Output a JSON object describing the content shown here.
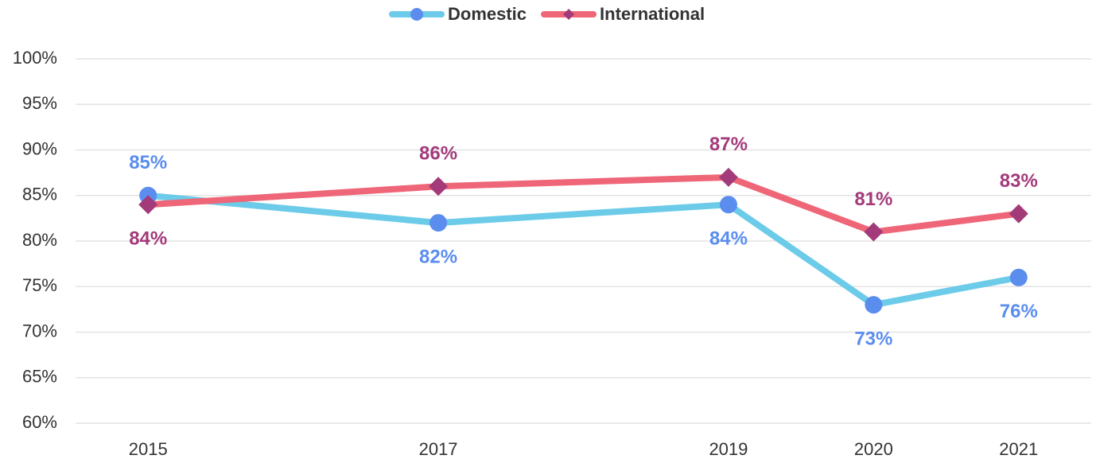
{
  "chart_data": {
    "type": "line",
    "x": [
      2015,
      2017,
      2019,
      2020,
      2021
    ],
    "xlim": [
      2014.5,
      2021.5
    ],
    "xticks": [
      2015,
      2017,
      2019,
      2020,
      2021
    ],
    "ylim": [
      60,
      100
    ],
    "yticks": [
      {
        "value": 60,
        "label": "60%"
      },
      {
        "value": 65,
        "label": "65%"
      },
      {
        "value": 70,
        "label": "70%"
      },
      {
        "value": 75,
        "label": "75%"
      },
      {
        "value": 80,
        "label": "80%"
      },
      {
        "value": 85,
        "label": "85%"
      },
      {
        "value": 90,
        "label": "90%"
      },
      {
        "value": 95,
        "label": "95%"
      },
      {
        "value": 100,
        "label": "100%"
      }
    ],
    "grid": true,
    "legend": "top",
    "series": [
      {
        "name": "Domestic",
        "color": "#6ccbe8",
        "marker": "circle",
        "marker_color": "#5b8def",
        "values": [
          85,
          82,
          84,
          73,
          76
        ],
        "value_labels": [
          "85%",
          "82%",
          "84%",
          "73%",
          "76%"
        ]
      },
      {
        "name": "International",
        "color": "#ee6677",
        "marker": "diamond",
        "marker_color": "#a33a7a",
        "values": [
          84,
          86,
          87,
          81,
          83
        ],
        "value_labels": [
          "84%",
          "86%",
          "87%",
          "81%",
          "83%"
        ]
      }
    ]
  }
}
